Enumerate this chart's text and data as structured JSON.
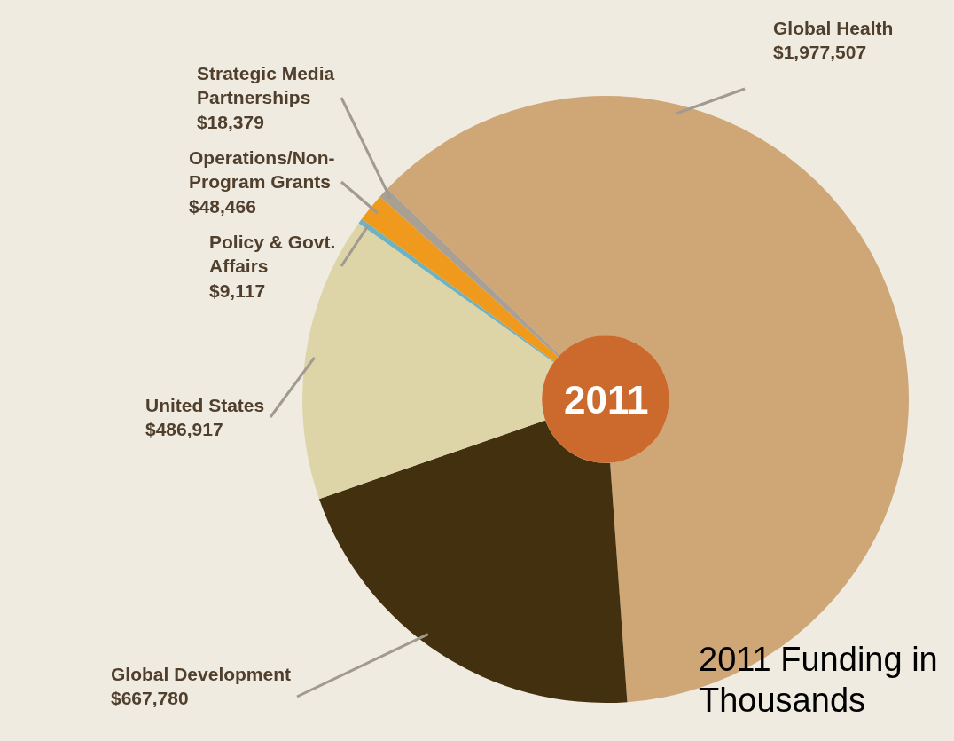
{
  "chart_data": {
    "type": "donut",
    "categories": [
      "Global Health",
      "Global Development",
      "United States",
      "Policy & Govt. Affairs",
      "Operations/Non-Program Grants",
      "Strategic Media Partnerships"
    ],
    "values": [
      1977507,
      667780,
      486917,
      9117,
      48466,
      18379
    ],
    "value_labels": [
      "$1,977,507",
      "$667,780",
      "$486,917",
      "$9,117",
      "$48,466",
      "$18,379"
    ],
    "colors": [
      "#cfa676",
      "#42300f",
      "#ddd4a8",
      "#6fb3c2",
      "#ef9a1c",
      "#a99f92"
    ],
    "annotations": [
      "2011",
      "2011 Funding in Thousands"
    ],
    "legend": false
  }
}
